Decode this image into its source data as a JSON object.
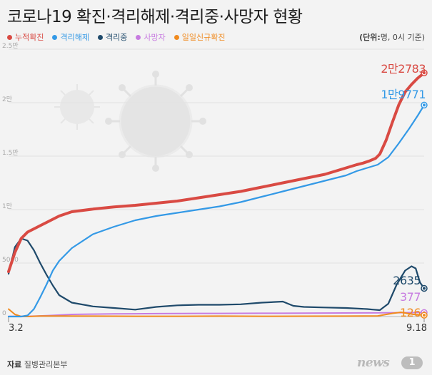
{
  "header": {
    "title": "코로나19 확진·격리해제·격리중·사망자 현황",
    "unit_prefix": "(단위:",
    "unit_rest": "명, 0시 기준)"
  },
  "legend": [
    {
      "label": "누적확진",
      "color": "#d94a43"
    },
    {
      "label": "격리해제",
      "color": "#3399e6"
    },
    {
      "label": "격리중",
      "color": "#1f4a6b"
    },
    {
      "label": "사망자",
      "color": "#c77be0"
    },
    {
      "label": "일일신규확진",
      "color": "#f08a1e"
    }
  ],
  "source": {
    "prefix": "자료",
    "name": "질병관리본부"
  },
  "logo": {
    "text": "news",
    "badge": "1"
  },
  "chart_data": {
    "type": "line",
    "title": "코로나19 확진·격리해제·격리중·사망자 현황",
    "x_start_label": "3.2",
    "x_end_label": "9.18",
    "ylim": [
      0,
      25000
    ],
    "yticks": [
      {
        "value": 0,
        "label": "0"
      },
      {
        "value": 5000,
        "label": "5000"
      },
      {
        "value": 10000,
        "label": "1만"
      },
      {
        "value": 15000,
        "label": "1.5만"
      },
      {
        "value": 20000,
        "label": "2만"
      },
      {
        "value": 25000,
        "label": "2.5만"
      }
    ],
    "grid": true,
    "x": [
      0,
      5,
      10,
      15,
      20,
      25,
      30,
      40,
      50,
      60,
      70,
      80,
      90,
      100,
      110,
      120,
      130,
      140,
      150,
      160,
      165,
      170,
      175,
      180,
      185,
      190,
      195,
      200
    ],
    "series": [
      {
        "name": "누적확진",
        "color": "#d94a43",
        "values": [
          4200,
          6000,
          7300,
          7900,
          8200,
          8500,
          8800,
          9400,
          9800,
          10050,
          10250,
          10400,
          10600,
          10800,
          11100,
          11400,
          11700,
          12100,
          12500,
          12900,
          13100,
          13300,
          13600,
          13900,
          14200,
          14350,
          14550,
          14800,
          15200,
          16500,
          18200,
          19800,
          21000,
          21700,
          22300,
          22783
        ],
        "x": [
          0,
          3,
          6,
          9,
          12,
          15,
          18,
          24,
          30,
          40,
          50,
          60,
          70,
          80,
          90,
          100,
          110,
          120,
          130,
          140,
          145,
          150,
          155,
          160,
          165,
          168,
          171,
          174,
          176,
          179,
          182,
          185,
          188,
          191,
          194,
          197
        ]
      },
      {
        "name": "격리해제",
        "color": "#3399e6",
        "values": [
          0,
          0,
          100,
          700,
          1800,
          3000,
          4300,
          5200,
          6400,
          7700,
          8400,
          9000,
          9400,
          9700,
          10000,
          10300,
          10700,
          11200,
          11700,
          12200,
          12700,
          13200,
          13600,
          13900,
          14200,
          14900,
          16200,
          17600,
          18800,
          19771
        ],
        "x": [
          0,
          6,
          9,
          12,
          15,
          18,
          21,
          24,
          30,
          40,
          50,
          60,
          70,
          80,
          90,
          100,
          110,
          120,
          130,
          140,
          150,
          160,
          165,
          170,
          175,
          180,
          185,
          190,
          194,
          197
        ]
      },
      {
        "name": "격리중",
        "color": "#1f4a6b",
        "values": [
          4000,
          6500,
          7300,
          7100,
          6200,
          5000,
          3900,
          2900,
          2000,
          1300,
          950,
          800,
          650,
          900,
          1050,
          1100,
          1100,
          1150,
          1300,
          1400,
          1000,
          900,
          850,
          800,
          700,
          650,
          600,
          1200,
          3000,
          4300,
          4700,
          4500,
          3200,
          2635
        ],
        "x": [
          0,
          3,
          6,
          9,
          12,
          15,
          18,
          21,
          24,
          30,
          40,
          50,
          60,
          70,
          80,
          90,
          100,
          110,
          120,
          130,
          135,
          140,
          150,
          160,
          170,
          173,
          176,
          180,
          184,
          188,
          191,
          193,
          195,
          197
        ]
      },
      {
        "name": "사망자",
        "color": "#c77be0",
        "values": [
          20,
          30,
          60,
          100,
          150,
          200,
          230,
          250,
          260,
          270,
          280,
          290,
          295,
          300,
          305,
          310,
          320,
          330,
          340,
          360,
          377
        ],
        "x": [
          0,
          10,
          15,
          20,
          25,
          30,
          40,
          50,
          60,
          70,
          80,
          90,
          100,
          110,
          120,
          130,
          140,
          150,
          170,
          185,
          197
        ]
      },
      {
        "name": "일일신규확진",
        "color": "#f08a1e",
        "values": [
          700,
          200,
          0,
          0,
          50,
          50,
          40,
          30,
          30,
          40,
          30,
          35,
          40,
          60,
          300,
          400,
          200,
          126
        ],
        "x": [
          0,
          3,
          6,
          9,
          15,
          25,
          40,
          60,
          80,
          100,
          120,
          140,
          160,
          175,
          182,
          186,
          192,
          197
        ]
      }
    ],
    "end_labels": [
      {
        "series": "누적확진",
        "text": "2만2783",
        "color": "#d94a43"
      },
      {
        "series": "격리해제",
        "text": "1만9771",
        "color": "#3399e6"
      },
      {
        "series": "격리중",
        "text": "2635",
        "color": "#1f4a6b"
      },
      {
        "series": "사망자",
        "text": "377",
        "color": "#c77be0"
      },
      {
        "series": "일일신규확진",
        "text": "126",
        "color": "#f08a1e"
      }
    ]
  }
}
